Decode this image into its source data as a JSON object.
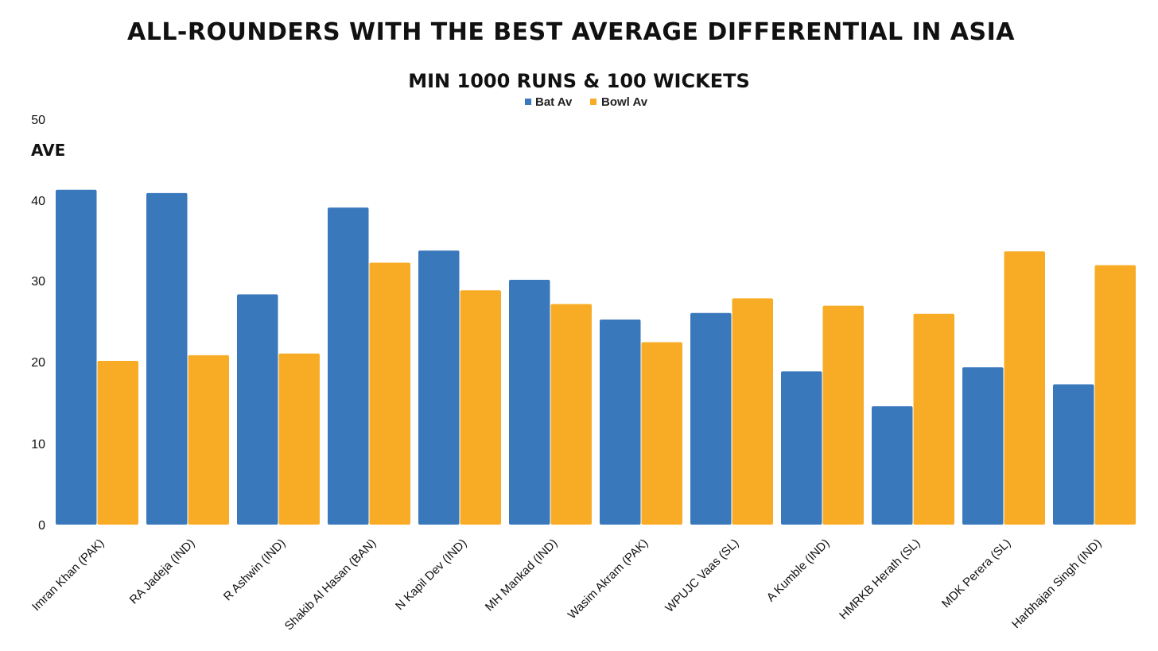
{
  "chart_data": {
    "type": "bar",
    "title": "ALL-ROUNDERS WITH THE BEST AVERAGE DIFFERENTIAL IN ASIA",
    "subtitle": "MIN 1000 RUNS & 100 WICKETS",
    "ylabel": "AVE",
    "xlabel": "",
    "ylim": [
      0,
      50
    ],
    "yticks": [
      "0",
      "10",
      "20",
      "30",
      "40",
      "50"
    ],
    "legend_position": "top-center",
    "grid": false,
    "categories": [
      "Imran Khan (PAK)",
      "RA Jadeja (IND)",
      "R Ashwin (IND)",
      "Shakib Al Hasan (BAN)",
      "N Kapil Dev (IND)",
      "MH Mankad (IND)",
      "Wasim Akram (PAK)",
      "WPUJC Vaas (SL)",
      "A Kumble (IND)",
      "HMRKB Herath (SL)",
      "MDK Perera (SL)",
      "Harbhajan Singh (IND)"
    ],
    "series": [
      {
        "name": "Bat Av",
        "color": "#3a78bc",
        "values": [
          41.3,
          40.9,
          28.4,
          39.1,
          33.8,
          30.2,
          25.3,
          26.1,
          18.9,
          14.6,
          19.4,
          17.3
        ]
      },
      {
        "name": "Bowl Av",
        "color": "#f8ac25",
        "values": [
          20.2,
          20.9,
          21.1,
          32.3,
          28.9,
          27.2,
          22.5,
          27.9,
          27.0,
          26.0,
          33.7,
          32.0
        ]
      }
    ]
  }
}
